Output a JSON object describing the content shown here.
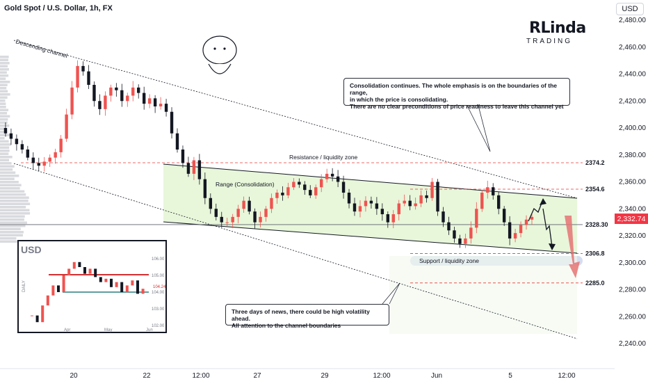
{
  "header": {
    "title": "Gold Spot / U.S. Dollar, 1h, FX",
    "currency": "USD"
  },
  "brand": {
    "name": "RLinda",
    "sub": "TRADING"
  },
  "colors": {
    "up": "#ef5350",
    "down": "#131722",
    "channel": "#131722",
    "range_fill": "#e6f5d6",
    "support_zone": "#d4def0",
    "last_price": "#f23645",
    "level_line": "#e53935",
    "arrow": "#e57373"
  },
  "chart_data": {
    "type": "candlestick",
    "title": "Gold Spot / U.S. Dollar, 1h, FX",
    "ylim": [
      2230,
      2490
    ],
    "y_ticks": [
      2240,
      2260,
      2280,
      2300,
      2320,
      2340,
      2360,
      2380,
      2400,
      2420,
      2440,
      2460,
      2480
    ],
    "y_tick_labels": [
      "2,240.00",
      "2,260.00",
      "2,280.00",
      "2,300.00",
      "2,320.00",
      "2,340.00",
      "2,360.00",
      "2,380.00",
      "2,400.00",
      "2,420.00",
      "2,440.00",
      "2,460.00",
      "2,480.00"
    ],
    "x_ticks": [
      "20",
      "22",
      "12:00",
      "27",
      "29",
      "12:00",
      "Jun",
      "5",
      "12:00"
    ],
    "last_price": 2332.74,
    "last_price_label": "2,332.74",
    "levels": [
      {
        "name": "Resistance / liquidity zone",
        "value": 2374.2,
        "label": "2374.2"
      },
      {
        "name": "",
        "value": 2354.6,
        "label": "2354.6"
      },
      {
        "name": "",
        "value": 2328.3,
        "label": "2328.30"
      },
      {
        "name": "",
        "value": 2306.8,
        "label": "2306.8"
      },
      {
        "name": "",
        "value": 2285.0,
        "label": "2285.0"
      }
    ],
    "annotations": [
      "Descending channel",
      "Range (Consolidation)",
      "Resistance / liquidity zone",
      "Support / liquidity zone"
    ],
    "close_path": [
      2400,
      2396,
      2392,
      2388,
      2384,
      2378,
      2374,
      2372,
      2375,
      2378,
      2382,
      2392,
      2410,
      2430,
      2446,
      2442,
      2432,
      2420,
      2414,
      2424,
      2430,
      2428,
      2420,
      2424,
      2430,
      2426,
      2418,
      2422,
      2416,
      2418,
      2412,
      2396,
      2384,
      2374,
      2366,
      2376,
      2362,
      2348,
      2340,
      2334,
      2330,
      2330,
      2334,
      2340,
      2346,
      2338,
      2330,
      2334,
      2340,
      2348,
      2352,
      2350,
      2356,
      2360,
      2358,
      2354,
      2350,
      2356,
      2362,
      2366,
      2364,
      2360,
      2352,
      2344,
      2338,
      2342,
      2346,
      2344,
      2340,
      2336,
      2330,
      2336,
      2344,
      2346,
      2342,
      2344,
      2350,
      2348,
      2360,
      2338,
      2330,
      2324,
      2318,
      2314,
      2318,
      2326,
      2340,
      2352,
      2356,
      2350,
      2340,
      2330,
      2318,
      2322,
      2328,
      2332,
      2334
    ],
    "inset": {
      "title": "USD",
      "y_ticks": [
        "106.00",
        "105.00",
        "104.00",
        "103.00",
        "102.00"
      ],
      "x_ticks": [
        "Apr",
        "May",
        "Jun"
      ],
      "price_tag": "104.24",
      "side_label": "DAILY"
    }
  },
  "callouts": {
    "top": [
      "Consolidation continues. The whole emphasis is on the boundaries of the range,",
      "in which the price is consolidating.",
      "There are no clear preconditions of price readiness to leave this channel yet"
    ],
    "bottom": [
      "Three days of news, there could be high volatility ahead.",
      "All attention to the channel boundaries"
    ]
  }
}
